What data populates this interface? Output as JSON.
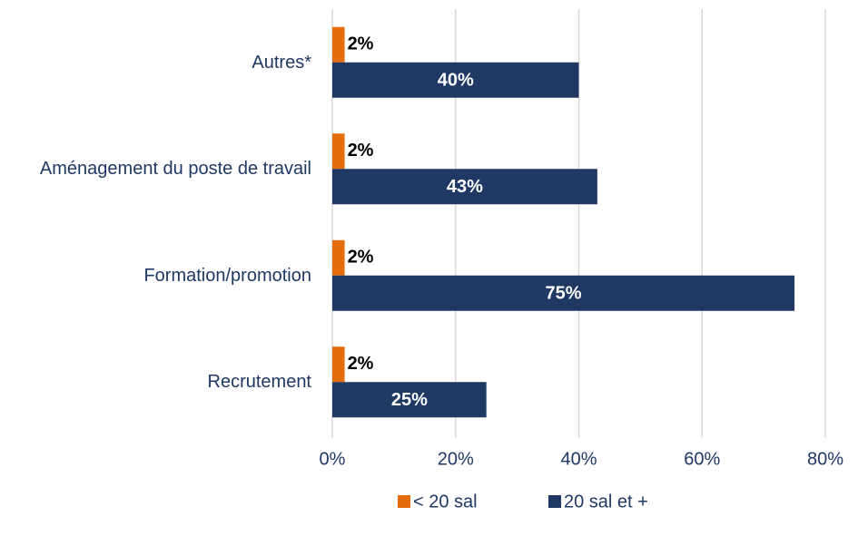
{
  "chart_data": {
    "type": "hbar",
    "categories": [
      "Autres*",
      "Aménagement du poste de travail",
      "Formation/promotion",
      "Recrutement"
    ],
    "series": [
      {
        "name": "< 20 sal",
        "color": "#e46c0a",
        "values": [
          2,
          2,
          2,
          2
        ],
        "value_labels": [
          "2%",
          "2%",
          "2%",
          "2%"
        ]
      },
      {
        "name": "20 sal et +",
        "color": "#1f3864",
        "values": [
          40,
          43,
          75,
          25
        ],
        "value_labels": [
          "40%",
          "43%",
          "75%",
          "25%"
        ]
      }
    ],
    "xlim": [
      0,
      80
    ],
    "xticks": [
      {
        "value": 0,
        "label": "0%"
      },
      {
        "value": 20,
        "label": "20%"
      },
      {
        "value": 40,
        "label": "40%"
      },
      {
        "value": 60,
        "label": "60%"
      },
      {
        "value": 80,
        "label": "80%"
      }
    ],
    "grid": true,
    "legend": "bottom"
  }
}
